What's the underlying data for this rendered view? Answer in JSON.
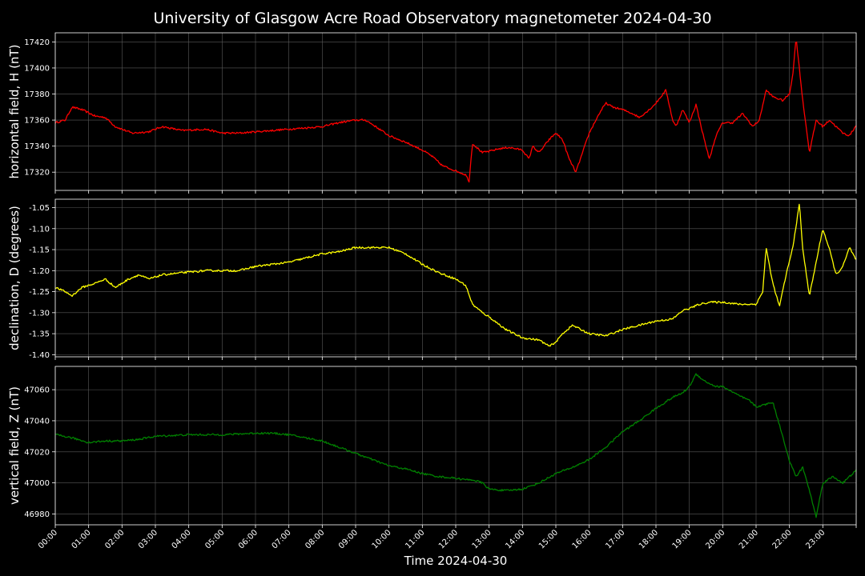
{
  "chart_data": {
    "type": "line",
    "title": "University of Glasgow Acre Road Observatory magnetometer 2024-04-30",
    "xlabel": "Time 2024-04-30",
    "x_ticks": [
      "00:00",
      "01:00",
      "02:00",
      "03:00",
      "04:00",
      "05:00",
      "06:00",
      "07:00",
      "08:00",
      "09:00",
      "10:00",
      "11:00",
      "12:00",
      "13:00",
      "14:00",
      "15:00",
      "16:00",
      "17:00",
      "18:00",
      "19:00",
      "20:00",
      "21:00",
      "22:00",
      "23:00"
    ],
    "xlim": [
      "00:00",
      "24:00"
    ],
    "grid": true,
    "background": "#000000",
    "panels": [
      {
        "ylabel": "horizontal field, H (nT)",
        "color": "#ff0000",
        "ylim": [
          17306,
          17427
        ],
        "yticks": [
          17320,
          17340,
          17360,
          17380,
          17400,
          17420
        ],
        "tick_decimals": 0,
        "x_hours": [
          0,
          0.3,
          0.5,
          0.8,
          1.2,
          1.5,
          1.8,
          2.3,
          2.8,
          3.2,
          3.8,
          4.5,
          5.0,
          5.5,
          6.0,
          6.5,
          7.0,
          7.5,
          8.0,
          8.5,
          9.0,
          9.3,
          9.6,
          10.0,
          10.5,
          11.0,
          11.3,
          11.6,
          12.0,
          12.3,
          12.4,
          12.5,
          12.8,
          13.0,
          13.3,
          13.6,
          14.0,
          14.2,
          14.3,
          14.5,
          14.8,
          15.0,
          15.2,
          15.4,
          15.6,
          15.8,
          16.0,
          16.3,
          16.5,
          16.7,
          17.0,
          17.3,
          17.5,
          17.8,
          18.0,
          18.3,
          18.5,
          18.6,
          18.8,
          19.0,
          19.2,
          19.4,
          19.6,
          19.8,
          20.0,
          20.3,
          20.6,
          20.9,
          21.1,
          21.3,
          21.5,
          21.8,
          22.0,
          22.1,
          22.2,
          22.4,
          22.6,
          22.8,
          23.0,
          23.2,
          23.4,
          23.6,
          23.8,
          24.0
        ],
        "values": [
          17358,
          17360,
          17370,
          17368,
          17363,
          17362,
          17355,
          17350,
          17351,
          17355,
          17352,
          17353,
          17350,
          17350,
          17351,
          17352,
          17353,
          17354,
          17355,
          17358,
          17360,
          17360,
          17355,
          17348,
          17343,
          17337,
          17332,
          17325,
          17321,
          17318,
          17313,
          17342,
          17335,
          17336,
          17338,
          17339,
          17337,
          17330,
          17340,
          17335,
          17345,
          17350,
          17345,
          17330,
          17320,
          17335,
          17350,
          17365,
          17373,
          17370,
          17368,
          17365,
          17362,
          17368,
          17373,
          17383,
          17360,
          17355,
          17368,
          17358,
          17372,
          17350,
          17330,
          17348,
          17358,
          17358,
          17365,
          17355,
          17360,
          17383,
          17378,
          17375,
          17380,
          17395,
          17423,
          17375,
          17335,
          17360,
          17355,
          17360,
          17355,
          17350,
          17348,
          17356
        ]
      },
      {
        "ylabel": "declination, D (degrees)",
        "color": "#ffff00",
        "ylim": [
          -1.405,
          -1.03
        ],
        "yticks": [
          -1.4,
          -1.35,
          -1.3,
          -1.25,
          -1.2,
          -1.15,
          -1.1,
          -1.05
        ],
        "tick_decimals": 2,
        "x_hours": [
          0,
          0.3,
          0.5,
          0.8,
          1.2,
          1.5,
          1.8,
          2.2,
          2.5,
          2.8,
          3.2,
          3.8,
          4.5,
          5.0,
          5.5,
          6.0,
          6.5,
          7.0,
          7.5,
          8.0,
          8.5,
          9.0,
          9.5,
          10.0,
          10.5,
          11.0,
          11.5,
          12.0,
          12.3,
          12.5,
          12.8,
          13.0,
          13.5,
          14.0,
          14.5,
          14.8,
          15.0,
          15.2,
          15.5,
          16.0,
          16.5,
          17.0,
          17.5,
          18.0,
          18.5,
          18.8,
          19.0,
          19.3,
          19.6,
          20.0,
          20.5,
          21.0,
          21.2,
          21.3,
          21.5,
          21.7,
          21.9,
          22.1,
          22.3,
          22.4,
          22.6,
          22.8,
          23.0,
          23.2,
          23.4,
          23.6,
          23.8,
          24.0
        ],
        "values": [
          -1.24,
          -1.25,
          -1.26,
          -1.24,
          -1.23,
          -1.22,
          -1.24,
          -1.22,
          -1.21,
          -1.22,
          -1.21,
          -1.205,
          -1.2,
          -1.2,
          -1.2,
          -1.19,
          -1.185,
          -1.18,
          -1.17,
          -1.16,
          -1.155,
          -1.145,
          -1.145,
          -1.145,
          -1.16,
          -1.185,
          -1.205,
          -1.22,
          -1.235,
          -1.28,
          -1.3,
          -1.31,
          -1.34,
          -1.36,
          -1.365,
          -1.38,
          -1.37,
          -1.35,
          -1.33,
          -1.35,
          -1.355,
          -1.34,
          -1.33,
          -1.32,
          -1.315,
          -1.295,
          -1.29,
          -1.28,
          -1.275,
          -1.275,
          -1.28,
          -1.28,
          -1.25,
          -1.145,
          -1.23,
          -1.285,
          -1.21,
          -1.145,
          -1.04,
          -1.15,
          -1.26,
          -1.18,
          -1.1,
          -1.15,
          -1.21,
          -1.19,
          -1.145,
          -1.175
        ]
      },
      {
        "ylabel": "vertical field, Z (nT)",
        "color": "#008000",
        "ylim": [
          46973,
          47075
        ],
        "yticks": [
          46980,
          47000,
          47020,
          47040,
          47060
        ],
        "tick_decimals": 0,
        "x_hours": [
          0,
          0.5,
          1.0,
          1.5,
          2.0,
          2.5,
          3.0,
          4.0,
          5.0,
          6.0,
          6.5,
          7.0,
          7.5,
          8.0,
          8.5,
          9.0,
          9.5,
          10.0,
          10.5,
          11.0,
          11.5,
          12.0,
          12.3,
          12.5,
          12.8,
          13.0,
          13.5,
          14.0,
          14.5,
          15.0,
          15.5,
          16.0,
          16.5,
          17.0,
          17.5,
          18.0,
          18.5,
          18.8,
          19.0,
          19.2,
          19.5,
          19.8,
          20.0,
          20.5,
          20.8,
          21.0,
          21.2,
          21.5,
          21.8,
          22.0,
          22.2,
          22.4,
          22.6,
          22.8,
          23.0,
          23.3,
          23.6,
          24.0
        ],
        "values": [
          47031,
          47029,
          47026,
          47027,
          47027,
          47028,
          47030,
          47031,
          47031,
          47032,
          47032,
          47031,
          47029,
          47027,
          47023,
          47019,
          47015,
          47011,
          47009,
          47006,
          47004,
          47003,
          47002,
          47002,
          47000,
          46996,
          46995,
          46996,
          47000,
          47006,
          47010,
          47015,
          47023,
          47033,
          47040,
          47048,
          47055,
          47058,
          47062,
          47070,
          47065,
          47062,
          47062,
          47056,
          47053,
          47049,
          47050,
          47052,
          47030,
          47014,
          47004,
          47010,
          46995,
          46978,
          47000,
          47004,
          47000,
          47008
        ]
      }
    ]
  }
}
